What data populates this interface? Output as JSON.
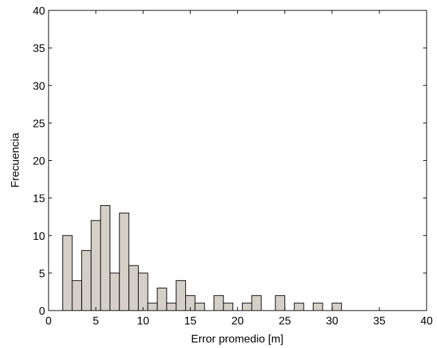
{
  "chart_data": {
    "type": "bar",
    "xlabel": "Error promedio [m]",
    "ylabel": "Frecuencia",
    "xlim": [
      0,
      40
    ],
    "ylim": [
      0,
      40
    ],
    "xticks": [
      0,
      5,
      10,
      15,
      20,
      25,
      30,
      35,
      40
    ],
    "yticks": [
      0,
      5,
      10,
      15,
      20,
      25,
      30,
      35,
      40
    ],
    "bin_width": 1,
    "bars": [
      {
        "x": 2,
        "y": 10
      },
      {
        "x": 3,
        "y": 4
      },
      {
        "x": 4,
        "y": 8
      },
      {
        "x": 5,
        "y": 12
      },
      {
        "x": 6,
        "y": 14
      },
      {
        "x": 7,
        "y": 5
      },
      {
        "x": 8,
        "y": 13
      },
      {
        "x": 9,
        "y": 6
      },
      {
        "x": 10,
        "y": 5
      },
      {
        "x": 11,
        "y": 1
      },
      {
        "x": 12,
        "y": 3
      },
      {
        "x": 13,
        "y": 1
      },
      {
        "x": 14,
        "y": 4
      },
      {
        "x": 15,
        "y": 2
      },
      {
        "x": 16,
        "y": 1
      },
      {
        "x": 18,
        "y": 2
      },
      {
        "x": 19,
        "y": 1
      },
      {
        "x": 21,
        "y": 1
      },
      {
        "x": 22,
        "y": 2
      },
      {
        "x": 24.5,
        "y": 2
      },
      {
        "x": 26.5,
        "y": 1
      },
      {
        "x": 28.5,
        "y": 1
      },
      {
        "x": 30.5,
        "y": 1
      }
    ],
    "grid": false,
    "legend": "none",
    "colors": {
      "bar_fill": "#d4d0c8",
      "bar_stroke": "#000000",
      "axis": "#000000",
      "background": "#ffffff"
    }
  }
}
